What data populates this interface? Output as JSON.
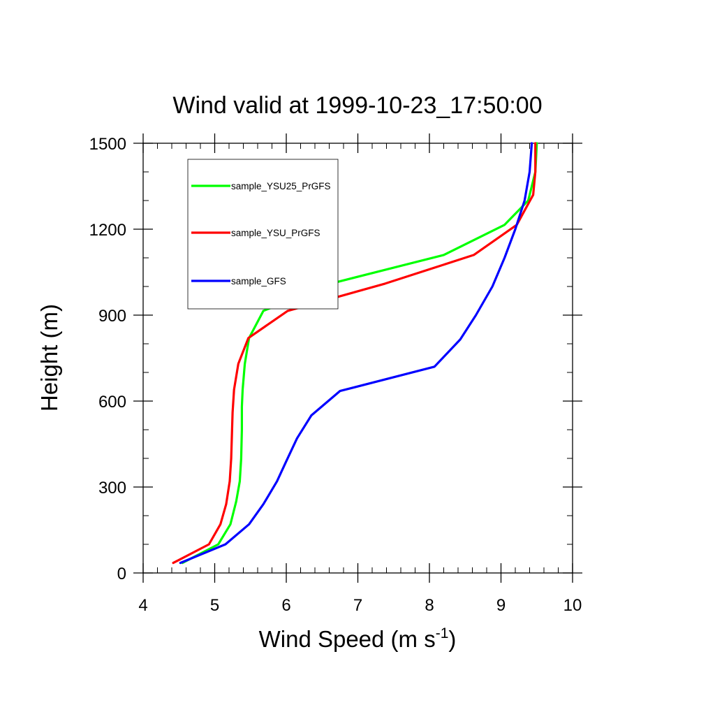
{
  "chart_data": {
    "type": "line",
    "title": "Wind valid at 1999-10-23_17:50:00",
    "xlabel": "Wind Speed (m s",
    "xlabel_superscript": "-1",
    "xlabel_close": ")",
    "ylabel": "Height (m)",
    "xlim": [
      4,
      10
    ],
    "ylim": [
      0,
      1500
    ],
    "x_ticks": [
      4,
      5,
      6,
      7,
      8,
      9,
      10
    ],
    "y_ticks": [
      0,
      300,
      600,
      900,
      1200,
      1500
    ],
    "x_tick_labels": [
      "4",
      "5",
      "6",
      "7",
      "8",
      "9",
      "10"
    ],
    "y_tick_labels": [
      "0",
      "300",
      "600",
      "900",
      "1200",
      "1500"
    ],
    "x_minor_step": 0.2,
    "y_minor_step": 100,
    "grid": false,
    "legend_position": "top-left",
    "series": [
      {
        "name": "sample_YSU25_PrGFS",
        "color": "#00ff00",
        "points": [
          [
            4.55,
            35
          ],
          [
            5.05,
            100
          ],
          [
            5.22,
            170
          ],
          [
            5.3,
            250
          ],
          [
            5.35,
            320
          ],
          [
            5.37,
            400
          ],
          [
            5.38,
            500
          ],
          [
            5.38,
            580
          ],
          [
            5.39,
            640
          ],
          [
            5.42,
            730
          ],
          [
            5.48,
            820
          ],
          [
            5.68,
            915
          ],
          [
            6.62,
            1010
          ],
          [
            8.2,
            1110
          ],
          [
            9.05,
            1215
          ],
          [
            9.38,
            1300
          ],
          [
            9.48,
            1400
          ],
          [
            9.5,
            1500
          ]
        ]
      },
      {
        "name": "sample_YSU_PrGFS",
        "color": "#ff0000",
        "points": [
          [
            4.42,
            35
          ],
          [
            4.92,
            100
          ],
          [
            5.08,
            170
          ],
          [
            5.16,
            240
          ],
          [
            5.21,
            320
          ],
          [
            5.23,
            400
          ],
          [
            5.24,
            480
          ],
          [
            5.25,
            560
          ],
          [
            5.27,
            640
          ],
          [
            5.33,
            730
          ],
          [
            5.47,
            820
          ],
          [
            6.02,
            915
          ],
          [
            7.38,
            1010
          ],
          [
            8.62,
            1110
          ],
          [
            9.22,
            1215
          ],
          [
            9.45,
            1320
          ],
          [
            9.48,
            1400
          ],
          [
            9.48,
            1500
          ]
        ]
      },
      {
        "name": "sample_GFS",
        "color": "#0000ff",
        "points": [
          [
            4.52,
            35
          ],
          [
            5.15,
            100
          ],
          [
            5.48,
            170
          ],
          [
            5.68,
            240
          ],
          [
            5.87,
            320
          ],
          [
            6.0,
            390
          ],
          [
            6.15,
            470
          ],
          [
            6.35,
            550
          ],
          [
            6.75,
            635
          ],
          [
            8.07,
            720
          ],
          [
            8.43,
            815
          ],
          [
            8.65,
            900
          ],
          [
            8.88,
            1000
          ],
          [
            9.05,
            1100
          ],
          [
            9.2,
            1200
          ],
          [
            9.33,
            1300
          ],
          [
            9.4,
            1400
          ],
          [
            9.43,
            1500
          ]
        ]
      }
    ]
  }
}
